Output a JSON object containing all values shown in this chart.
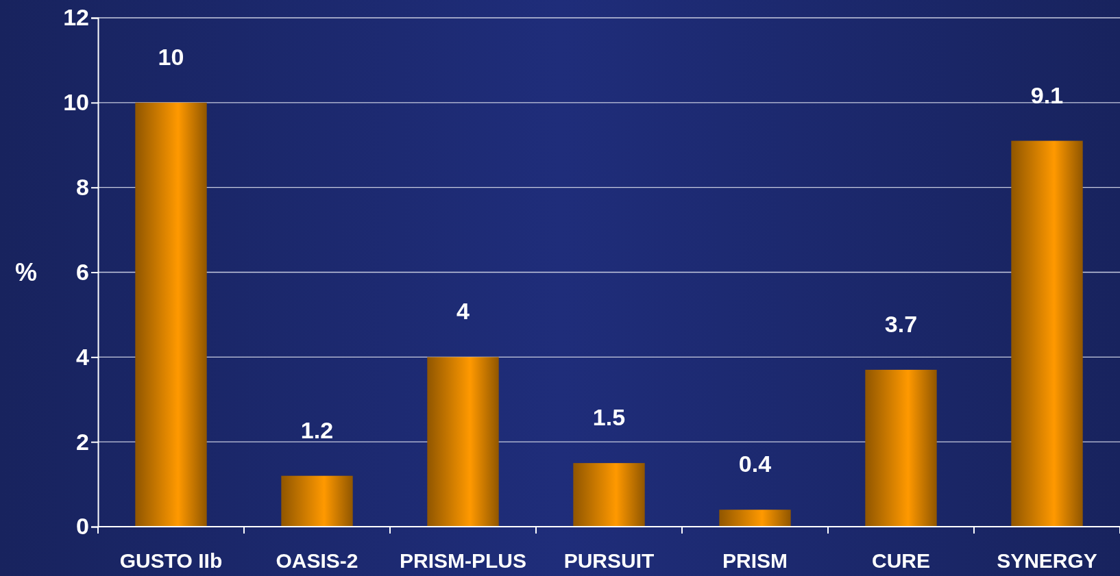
{
  "chart_data": {
    "type": "bar",
    "ylabel": "%",
    "categories": [
      "GUSTO IIb",
      "OASIS-2",
      "PRISM-PLUS",
      "PURSUIT",
      "PRISM",
      "CURE",
      "SYNERGY"
    ],
    "values": [
      10,
      1.2,
      4,
      1.5,
      0.4,
      3.7,
      9.1
    ],
    "color": "#ff9900",
    "ylim": [
      0,
      12
    ],
    "yticks": [
      0,
      2,
      4,
      6,
      8,
      10,
      12
    ],
    "grid": "y",
    "data_labels": true
  }
}
